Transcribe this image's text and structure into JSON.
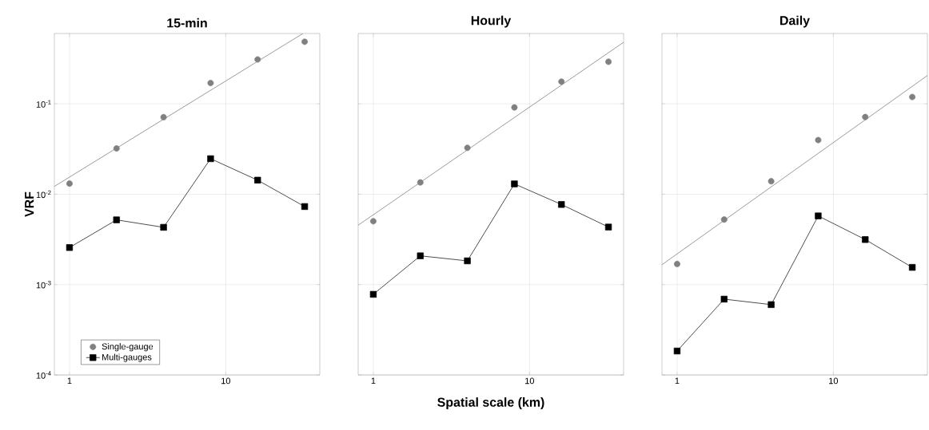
{
  "chart_data": [
    {
      "type": "line",
      "title": "15-min",
      "ylabel": "VRF",
      "x": [
        1,
        2,
        4,
        8,
        16,
        32
      ],
      "xlim": [
        0.8,
        40
      ],
      "ylim": [
        0.0001,
        0.6
      ],
      "log": "xy",
      "grid": true,
      "legend": "bottom left",
      "xticks": [
        1,
        10
      ],
      "yticks": [
        {
          "value": 0.0001,
          "label": "10$^{-4}$"
        },
        {
          "value": 0.001,
          "label": "10$^{-3}$"
        },
        {
          "value": 0.01,
          "label": "10$^{-2}$"
        },
        {
          "value": 0.1,
          "label": "10$^{-1}$"
        }
      ],
      "series": [
        {
          "name": "Single-gauge",
          "type": "scatter",
          "color": "#808080",
          "marker": "circle",
          "values": [
            0.0131,
            0.0321,
            0.0711,
            0.17,
            0.31,
            0.486
          ]
        },
        {
          "name": "Multi-gauges",
          "color": "#000000",
          "marker": "square",
          "values": [
            0.00257,
            0.0052,
            0.0043,
            0.0247,
            0.0143,
            0.0073
          ]
        },
        {
          "color": "#707070",
          "marker": "none",
          "x": [
            0.8,
            31.2
          ],
          "values": [
            0.0122,
            0.6
          ]
        }
      ]
    },
    {
      "type": "line",
      "title": "Hourly",
      "xlabel": "Spatial scale (km)",
      "x": [
        1,
        2,
        4,
        8,
        16,
        32
      ],
      "xlim": [
        0.8,
        40
      ],
      "ylim": [
        0.0001,
        0.6
      ],
      "log": "xy",
      "grid": true,
      "tick_labels": "x",
      "xticks": [
        1,
        10
      ],
      "yticks": [
        {
          "value": 0.0001,
          "label": null
        },
        {
          "value": 0.001,
          "label": null
        },
        {
          "value": 0.01,
          "label": null
        },
        {
          "value": 0.1,
          "label": null
        }
      ],
      "series": [
        {
          "type": "scatter",
          "color": "#808080",
          "marker": "circle",
          "values": [
            0.00502,
            0.0135,
            0.0326,
            0.0912,
            0.176,
            0.292
          ]
        },
        {
          "color": "#000000",
          "marker": "square",
          "values": [
            0.00078,
            0.00208,
            0.00183,
            0.013,
            0.0077,
            0.00433
          ]
        },
        {
          "color": "#707070",
          "marker": "none",
          "x": [
            0.8,
            40
          ],
          "values": [
            0.00454,
            0.48
          ]
        }
      ]
    },
    {
      "type": "line",
      "title": "Daily",
      "x": [
        1,
        2,
        4,
        8,
        16,
        32
      ],
      "xlim": [
        0.8,
        40
      ],
      "ylim": [
        0.0001,
        0.6
      ],
      "log": "xy",
      "grid": true,
      "tick_labels": "x",
      "xticks": [
        1,
        10
      ],
      "yticks": [
        {
          "value": 0.0001,
          "label": null
        },
        {
          "value": 0.001,
          "label": null
        },
        {
          "value": 0.01,
          "label": null
        },
        {
          "value": 0.1,
          "label": null
        }
      ],
      "series": [
        {
          "type": "scatter",
          "color": "#808080",
          "marker": "circle",
          "values": [
            0.00169,
            0.00524,
            0.0139,
            0.0397,
            0.0715,
            0.119
          ]
        },
        {
          "color": "#000000",
          "marker": "square",
          "values": [
            0.000184,
            0.00069,
            0.0006,
            0.00575,
            0.00315,
            0.00155
          ]
        },
        {
          "color": "#707070",
          "marker": "none",
          "x": [
            0.8,
            40
          ],
          "values": [
            0.00166,
            0.2056
          ]
        }
      ]
    }
  ]
}
